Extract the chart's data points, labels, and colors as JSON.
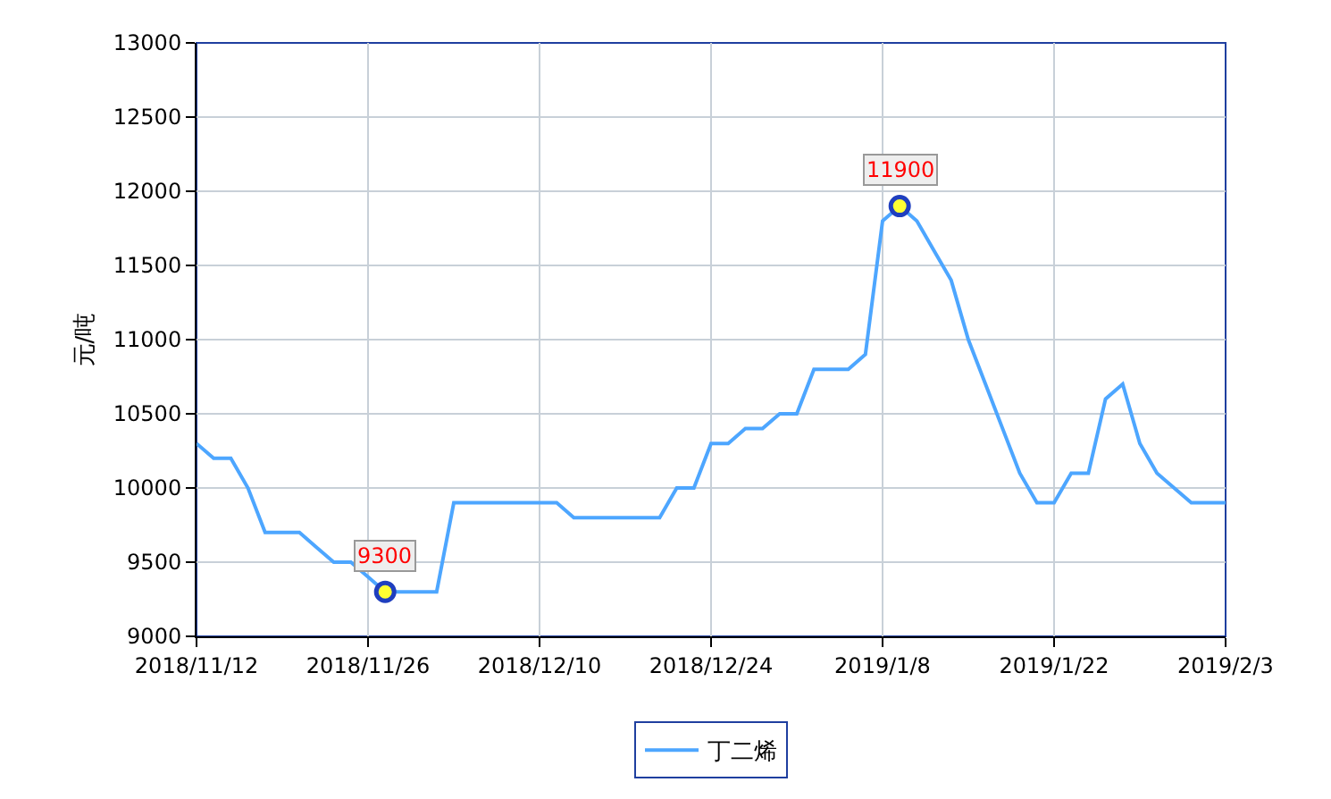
{
  "chart_data": {
    "type": "line",
    "ylabel": "元/吨",
    "categories": [
      "2018/11/12",
      null,
      null,
      null,
      null,
      null,
      null,
      null,
      null,
      null,
      "2018/11/26",
      null,
      null,
      null,
      null,
      null,
      null,
      null,
      null,
      null,
      "2018/12/10",
      null,
      null,
      null,
      null,
      null,
      null,
      null,
      null,
      null,
      "2018/12/24",
      null,
      null,
      null,
      null,
      null,
      null,
      null,
      null,
      null,
      "2019/1/8",
      null,
      null,
      null,
      null,
      null,
      null,
      null,
      null,
      null,
      "2019/1/22",
      null,
      null,
      null,
      null,
      null,
      null,
      null,
      null,
      null,
      "2019/2/3"
    ],
    "series": [
      {
        "name": "丁二烯",
        "color": "#4da6ff",
        "values": [
          10300,
          10200,
          10200,
          10000,
          9700,
          9700,
          9700,
          9600,
          9500,
          9500,
          9400,
          9300,
          9300,
          9300,
          9300,
          9900,
          9900,
          9900,
          9900,
          9900,
          9900,
          9900,
          9800,
          9800,
          9800,
          9800,
          9800,
          9800,
          10000,
          10000,
          10300,
          10300,
          10400,
          10400,
          10500,
          10500,
          10800,
          10800,
          10800,
          10900,
          11800,
          11900,
          11800,
          11600,
          11400,
          11000,
          10700,
          10400,
          10100,
          9900,
          9900,
          10100,
          10100,
          10600,
          10700,
          10300,
          10100,
          10000,
          9900,
          9900,
          9900
        ],
        "value_labels": [
          null,
          null,
          null,
          null,
          null,
          null,
          null,
          null,
          null,
          null,
          null,
          "9300",
          null,
          null,
          null,
          null,
          null,
          null,
          null,
          null,
          null,
          null,
          null,
          null,
          null,
          null,
          null,
          null,
          null,
          null,
          null,
          null,
          null,
          null,
          null,
          null,
          null,
          null,
          null,
          null,
          null,
          "11900",
          null,
          null,
          null,
          null,
          null,
          null,
          null,
          null,
          null,
          null,
          null,
          null,
          null,
          null,
          null,
          null,
          null,
          null,
          null
        ]
      }
    ],
    "ylim": [
      9000,
      13000
    ],
    "yticks": [
      9000,
      9500,
      10000,
      10500,
      11000,
      11500,
      12000,
      12500,
      13000
    ],
    "grid": true,
    "legend": "bottom",
    "marker": "none",
    "line_style": "solid"
  }
}
